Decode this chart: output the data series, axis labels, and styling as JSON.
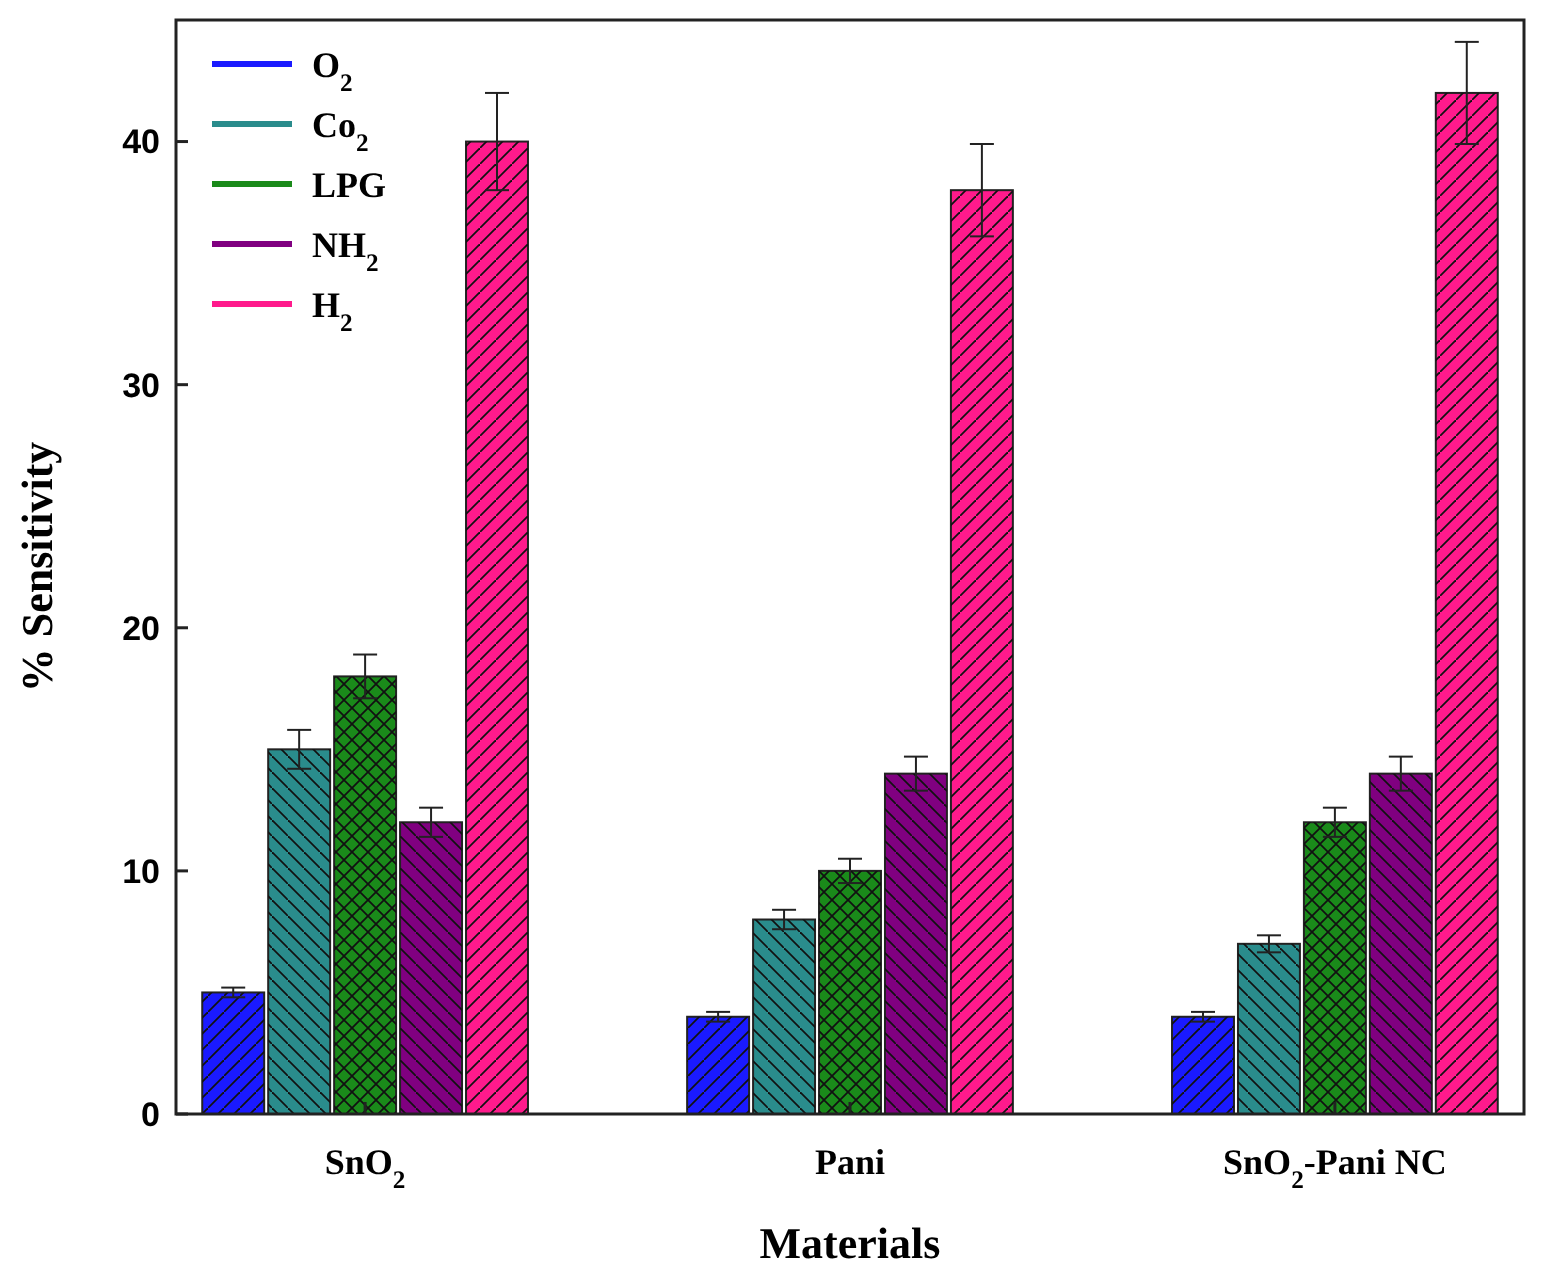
{
  "chart_data": {
    "type": "bar",
    "xlabel": "Materials",
    "ylabel": "% Sensitivity",
    "categories": [
      "SnO$_{2}$",
      "Pani",
      "SnO$_{2}$-Pani NC"
    ],
    "series": [
      {
        "name": "O$_{2}$",
        "color": "#1a1aff",
        "values": [
          5,
          4,
          4
        ],
        "errors": [
          0.2,
          0.2,
          0.2
        ]
      },
      {
        "name": "Co$_{2}$",
        "color": "#2a8c8c",
        "values": [
          15,
          8,
          7
        ],
        "errors": [
          0.8,
          0.4,
          0.35
        ]
      },
      {
        "name": "LPG",
        "color": "#1a8a1a",
        "values": [
          18,
          10,
          12
        ],
        "errors": [
          0.9,
          0.5,
          0.6
        ]
      },
      {
        "name": "NH$_{2}$",
        "color": "#800080",
        "values": [
          12,
          14,
          14
        ],
        "errors": [
          0.6,
          0.7,
          0.7
        ]
      },
      {
        "name": "H$_{2}$",
        "color": "#ff1a8c",
        "values": [
          40,
          38,
          42
        ],
        "errors": [
          2,
          1.9,
          2.1
        ]
      }
    ],
    "ylim": [
      0,
      45
    ],
    "yticks": [
      0,
      10,
      20,
      30,
      40
    ],
    "legend": "top left",
    "grid": false
  }
}
